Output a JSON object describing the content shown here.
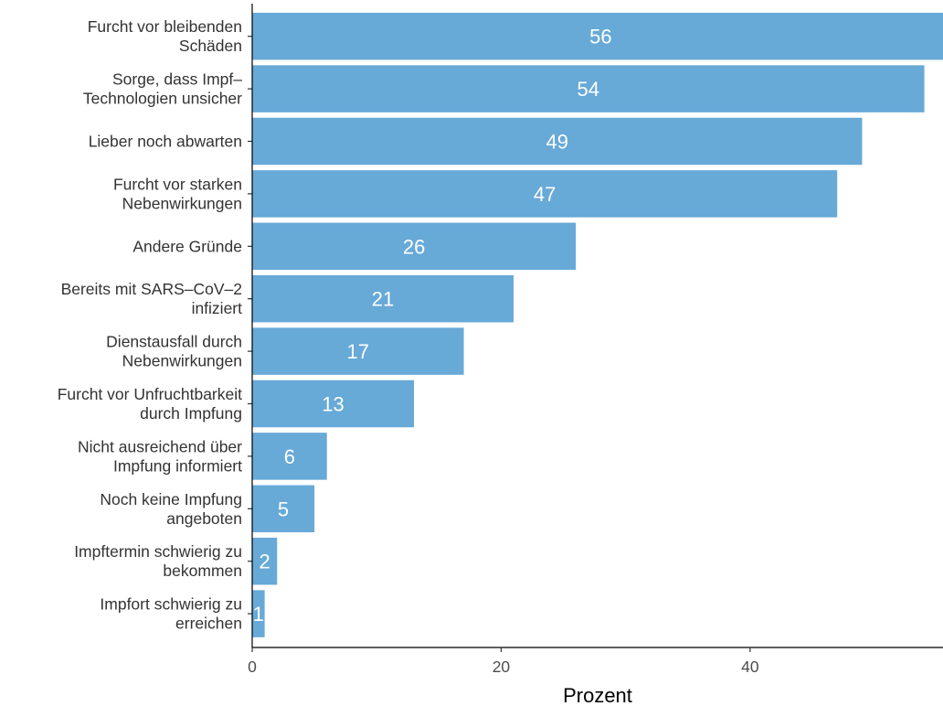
{
  "chart_data": {
    "type": "bar",
    "orientation": "horizontal",
    "categories": [
      [
        "Furcht vor bleibenden",
        "Schäden"
      ],
      [
        "Sorge, dass Impf–",
        "Technologien unsicher"
      ],
      [
        "Lieber noch abwarten"
      ],
      [
        "Furcht vor starken",
        "Nebenwirkungen"
      ],
      [
        "Andere Gründe"
      ],
      [
        "Bereits mit SARS–CoV–2",
        "infiziert"
      ],
      [
        "Dienstausfall durch",
        "Nebenwirkungen"
      ],
      [
        "Furcht vor Unfruchtbarkeit",
        "durch Impfung"
      ],
      [
        "Nicht ausreichend über",
        "Impfung informiert"
      ],
      [
        "Noch keine Impfung",
        "angeboten"
      ],
      [
        "Impftermin schwierig zu",
        "bekommen"
      ],
      [
        "Impfort schwierig zu",
        "erreichen"
      ]
    ],
    "values": [
      56,
      54,
      49,
      47,
      26,
      21,
      17,
      13,
      6,
      5,
      2,
      1
    ],
    "data_labels": [
      "56",
      "54",
      "49",
      "47",
      "26",
      "21",
      "17",
      "13",
      "6",
      "5",
      "2",
      "1"
    ],
    "xlabel": "Prozent",
    "ylabel": "",
    "xlim": [
      0,
      55.5
    ],
    "xticks": [
      0,
      20,
      40
    ],
    "xtick_labels": [
      "0",
      "20",
      "40"
    ],
    "grid": false,
    "bar_color": "#67a9d7",
    "label_color": "#ffffff"
  }
}
